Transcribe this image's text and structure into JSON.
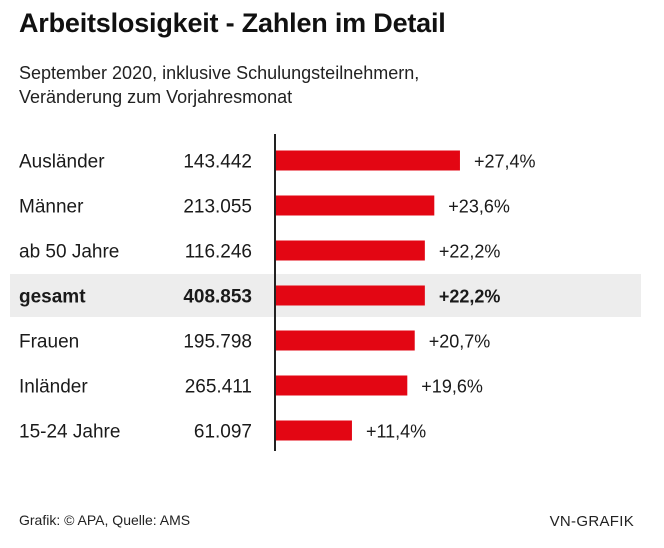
{
  "title": "Arbeitslosigkeit - Zahlen im Detail",
  "subtitle_line1": "September 2020, inklusive Schulungsteilnehmern,",
  "subtitle_line2": "Veränderung zum Vorjahresmonat",
  "source": "Grafik: © APA, Quelle: AMS",
  "brand": "VN-GRAFIK",
  "colors": {
    "bar": "#e30613",
    "highlight_row": "#ededed",
    "axis": "#222222"
  },
  "chart_data": {
    "type": "bar",
    "orientation": "horizontal",
    "title": "Arbeitslosigkeit - Zahlen im Detail",
    "categories": [
      "Ausländer",
      "Männer",
      "ab 50 Jahre",
      "gesamt",
      "Frauen",
      "Inländer",
      "15-24 Jahre"
    ],
    "counts": [
      "143.442",
      "213.055",
      "116.246",
      "408.853",
      "195.798",
      "265.411",
      "61.097"
    ],
    "values": [
      27.4,
      23.6,
      22.2,
      22.2,
      20.7,
      19.6,
      11.4
    ],
    "value_labels": [
      "+27,4%",
      "+23,6%",
      "+22,2%",
      "+22,2%",
      "+20,7%",
      "+19,6%",
      "+11,4%"
    ],
    "highlight": "gesamt",
    "xlim": [
      0,
      30
    ],
    "unit": "%"
  }
}
